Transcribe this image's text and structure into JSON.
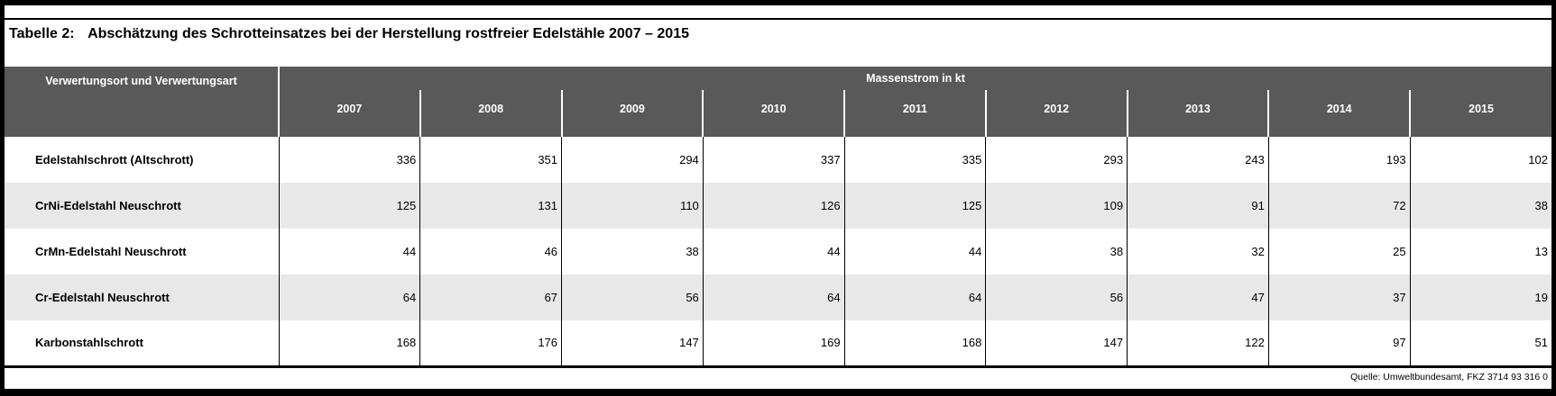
{
  "title": {
    "label": "Tabelle 2:",
    "text": "Abschätzung des Schrotteinsatzes bei der Herstellung rostfreier Edelstähle 2007 – 2015"
  },
  "table": {
    "corner_header": "Verwertungsort und Verwertungsart",
    "group_header": "Massenstrom in kt",
    "years": [
      "2007",
      "2008",
      "2009",
      "2010",
      "2011",
      "2012",
      "2013",
      "2014",
      "2015"
    ],
    "rows": [
      {
        "label": "Edelstahlschrott (Altschrott)",
        "values": [
          336,
          351,
          294,
          337,
          335,
          293,
          243,
          193,
          102
        ]
      },
      {
        "label": "CrNi-Edelstahl Neuschrott",
        "values": [
          125,
          131,
          110,
          126,
          125,
          109,
          91,
          72,
          38
        ]
      },
      {
        "label": "CrMn-Edelstahl Neuschrott",
        "values": [
          44,
          46,
          38,
          44,
          44,
          38,
          32,
          25,
          13
        ]
      },
      {
        "label": "Cr-Edelstahl Neuschrott",
        "values": [
          64,
          67,
          56,
          64,
          64,
          56,
          47,
          37,
          19
        ]
      },
      {
        "label": "Karbonstahlschrott",
        "values": [
          168,
          176,
          147,
          169,
          168,
          147,
          122,
          97,
          51
        ]
      }
    ]
  },
  "footer": {
    "source": "Quelle: Umweltbundesamt, FKZ 3714 93 316 0"
  },
  "colors": {
    "header_bg": "#595959",
    "header_text": "#ffffff",
    "row_alt_bg": "#e8e8e8",
    "border": "#000000"
  }
}
